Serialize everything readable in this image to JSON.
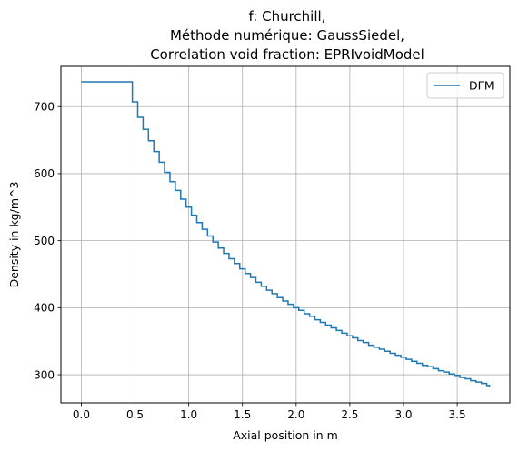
{
  "chart_data": {
    "type": "line",
    "title_lines": [
      "f: Churchill,",
      "Méthode numérique: GaussSiedel,",
      "Correlation void fraction: EPRIvoidModel"
    ],
    "xlabel": "Axial position in m",
    "ylabel": "Density in kg/m^3",
    "xlim": [
      -0.19,
      3.99
    ],
    "ylim": [
      258,
      760
    ],
    "xticks": [
      0.0,
      0.5,
      1.0,
      1.5,
      2.0,
      2.5,
      3.0,
      3.5
    ],
    "xtick_labels": [
      "0.0",
      "0.5",
      "1.0",
      "1.5",
      "2.0",
      "2.5",
      "3.0",
      "3.5"
    ],
    "yticks": [
      300,
      400,
      500,
      600,
      700
    ],
    "ytick_labels": [
      "300",
      "400",
      "500",
      "600",
      "700"
    ],
    "grid": true,
    "legend_position": "top-right",
    "step_style": "post",
    "series": [
      {
        "name": "DFM",
        "color": "#1f77b4",
        "x": [
          0.0,
          0.475,
          0.525,
          0.575,
          0.625,
          0.675,
          0.725,
          0.775,
          0.825,
          0.875,
          0.925,
          0.975,
          1.025,
          1.075,
          1.125,
          1.175,
          1.225,
          1.275,
          1.325,
          1.375,
          1.425,
          1.475,
          1.525,
          1.575,
          1.625,
          1.675,
          1.725,
          1.775,
          1.825,
          1.875,
          1.925,
          1.975,
          2.025,
          2.075,
          2.125,
          2.175,
          2.225,
          2.275,
          2.325,
          2.375,
          2.425,
          2.475,
          2.525,
          2.575,
          2.625,
          2.675,
          2.725,
          2.775,
          2.825,
          2.875,
          2.925,
          2.975,
          3.025,
          3.075,
          3.125,
          3.175,
          3.225,
          3.275,
          3.325,
          3.375,
          3.425,
          3.475,
          3.525,
          3.575,
          3.625,
          3.675,
          3.725,
          3.775,
          3.8
        ],
        "y": [
          737,
          707,
          684,
          666,
          649,
          633,
          617,
          602,
          588,
          575,
          562,
          550,
          538,
          527,
          517,
          507,
          498,
          489,
          481,
          473,
          466,
          458,
          451,
          445,
          438,
          432,
          426,
          421,
          415,
          410,
          405,
          400,
          396,
          391,
          387,
          382,
          378,
          374,
          370,
          366,
          362,
          358,
          355,
          351,
          348,
          344,
          341,
          338,
          335,
          332,
          329,
          326,
          323,
          320,
          317,
          314,
          312,
          309,
          306,
          304,
          301,
          299,
          296,
          294,
          291,
          289,
          287,
          284,
          281
        ]
      }
    ]
  }
}
